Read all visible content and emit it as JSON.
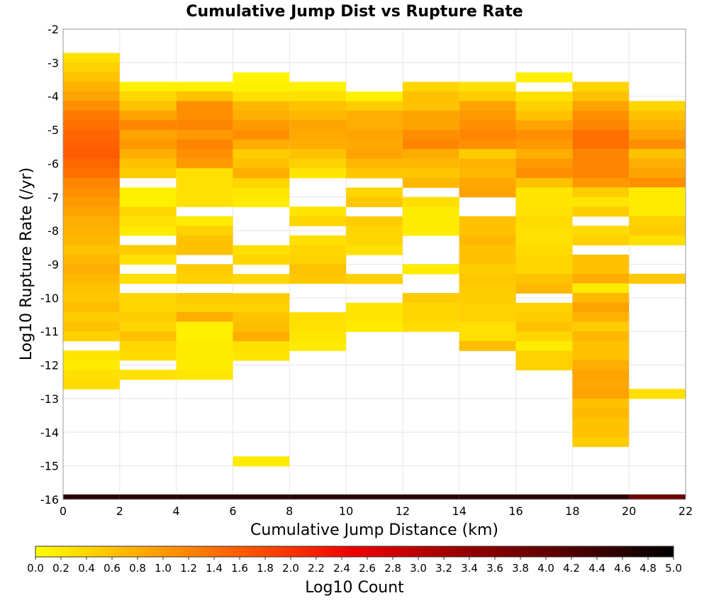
{
  "chart_data": {
    "type": "heatmap",
    "title": "Cumulative Jump Dist vs Rupture Rate",
    "xlabel": "Cumulative Jump Distance (km)",
    "ylabel": "Log10 Rupture Rate (/yr)",
    "xlim": [
      0,
      22
    ],
    "ylim": [
      -16,
      -2
    ],
    "x_ticks": [
      0,
      2,
      4,
      6,
      8,
      10,
      12,
      14,
      16,
      18,
      20,
      22
    ],
    "y_ticks": [
      -16,
      -15,
      -14,
      -13,
      -12,
      -11,
      -10,
      -9,
      -8,
      -7,
      -6,
      -5,
      -4,
      -3,
      -2
    ],
    "x_bin_width": 2,
    "y_bin_height": 0.2857,
    "grid": true,
    "colorbar": {
      "label": "Log10 Count",
      "range": [
        0,
        5
      ],
      "ticks": [
        "0.0",
        "0.2",
        "0.4",
        "0.6",
        "0.8",
        "1.0",
        "1.2",
        "1.4",
        "1.6",
        "1.8",
        "2.0",
        "2.2",
        "2.4",
        "2.6",
        "2.8",
        "3.0",
        "3.2",
        "3.4",
        "3.6",
        "3.8",
        "4.0",
        "4.2",
        "4.4",
        "4.6",
        "4.8",
        "5.0"
      ],
      "colors": [
        "#ffff00",
        "#ffaa00",
        "#ff5500",
        "#ee0000",
        "#990000",
        "#550000",
        "#000000"
      ]
    },
    "columns": [
      {
        "x_start": 0,
        "y_top": -2.71,
        "values": [
          0.3,
          0.45,
          0.6,
          0.75,
          0.9,
          1.1,
          1.3,
          1.4,
          1.5,
          1.55,
          1.6,
          1.5,
          1.4,
          1.2,
          1.1,
          1.0,
          0.9,
          0.8,
          0.75,
          0.7,
          0.6,
          0.7,
          0.8,
          0.7,
          0.6,
          0.55,
          0.65,
          0.5,
          0.6,
          0.45,
          null,
          0.25,
          0.2,
          0.3,
          0.35
        ]
      },
      {
        "x_start": 2,
        "y_top": -3.57,
        "values": [
          0.15,
          0.4,
          0.6,
          0.9,
          1.2,
          0.9,
          1.0,
          0.8,
          0.6,
          0.5,
          null,
          0.15,
          0.15,
          0.4,
          0.3,
          0.2,
          null,
          0.5,
          0.3,
          null,
          0.3,
          null,
          0.4,
          0.4,
          0.5,
          0.4,
          0.6,
          0.4,
          0.35,
          null,
          0.3
        ]
      },
      {
        "x_start": 4,
        "y_top": -3.57,
        "values": [
          0.15,
          0.6,
          1.1,
          1.1,
          1.2,
          1.0,
          1.2,
          1.1,
          1.0,
          0.3,
          0.3,
          0.3,
          0.3,
          null,
          0.2,
          0.45,
          0.6,
          0.6,
          null,
          0.5,
          0.45,
          null,
          0.5,
          0.45,
          0.8,
          0.15,
          0.15,
          0.2,
          0.2,
          0.2,
          0.25
        ]
      },
      {
        "x_start": 6,
        "y_top": -3.29,
        "values": [
          0.1,
          0.15,
          0.3,
          0.7,
          0.8,
          1.0,
          1.1,
          0.8,
          0.5,
          0.6,
          0.8,
          0.4,
          0.25,
          0.2,
          null,
          null,
          null,
          null,
          0.3,
          0.4,
          null,
          0.4,
          null,
          0.5,
          0.45,
          0.6,
          0.65,
          0.8,
          0.3,
          0.25,
          null,
          null,
          null,
          null,
          null,
          null,
          null,
          null,
          null,
          null,
          0.2
        ]
      },
      {
        "x_start": 8,
        "y_top": -3.57,
        "values": [
          0.15,
          0.3,
          0.6,
          0.7,
          0.9,
          0.85,
          0.8,
          0.6,
          0.45,
          0.25,
          null,
          null,
          null,
          0.25,
          0.4,
          null,
          0.3,
          0.4,
          0.45,
          0.6,
          0.55,
          null,
          null,
          null,
          0.3,
          0.3,
          0.25,
          0.2
        ]
      },
      {
        "x_start": 10,
        "y_top": -3.86,
        "values": [
          0.15,
          0.5,
          0.8,
          0.8,
          0.9,
          0.85,
          0.9,
          0.7,
          0.55,
          null,
          0.4,
          0.55,
          null,
          0.5,
          0.4,
          0.4,
          0.3,
          null,
          null,
          0.45,
          null,
          null,
          0.25,
          0.25,
          0.2
        ]
      },
      {
        "x_start": 12,
        "y_top": -3.57,
        "values": [
          0.4,
          0.6,
          0.6,
          0.9,
          0.9,
          1.1,
          1.2,
          0.8,
          0.7,
          0.55,
          0.7,
          null,
          0.3,
          0.2,
          0.2,
          0.2,
          null,
          null,
          null,
          0.2,
          null,
          null,
          0.5,
          0.4,
          0.4,
          0.35
        ]
      },
      {
        "x_start": 14,
        "y_top": -3.57,
        "values": [
          0.3,
          0.5,
          0.9,
          1.0,
          1.1,
          1.2,
          1.1,
          0.5,
          0.75,
          0.7,
          0.85,
          0.9,
          null,
          null,
          0.6,
          0.6,
          0.7,
          0.6,
          0.6,
          0.5,
          0.55,
          0.5,
          0.5,
          0.45,
          0.45,
          0.3,
          0.3,
          0.65
        ]
      },
      {
        "x_start": 16,
        "y_top": -3.29,
        "values": [
          0.15,
          null,
          0.3,
          0.45,
          0.6,
          0.9,
          1.1,
          1.0,
          0.8,
          1.0,
          1.1,
          0.6,
          0.25,
          0.25,
          0.3,
          0.35,
          0.3,
          0.3,
          0.35,
          0.4,
          0.4,
          0.6,
          0.7,
          null,
          0.45,
          0.5,
          0.6,
          0.4,
          0.2,
          0.45,
          0.45
        ]
      },
      {
        "x_start": 18,
        "y_top": -3.57,
        "values": [
          0.4,
          0.6,
          0.9,
          1.1,
          1.2,
          1.4,
          1.4,
          1.2,
          1.2,
          1.2,
          1.0,
          0.5,
          0.25,
          0.5,
          null,
          0.35,
          0.45,
          null,
          0.6,
          0.6,
          0.8,
          0.2,
          0.7,
          0.9,
          0.75,
          0.5,
          0.7,
          0.6,
          0.6,
          0.8,
          0.9,
          0.85,
          0.9,
          0.6,
          0.7,
          0.6,
          0.6,
          0.5
        ]
      },
      {
        "x_start": 20,
        "y_top": -4.14,
        "values": [
          0.4,
          0.6,
          0.75,
          0.9,
          1.1,
          0.6,
          0.8,
          0.9,
          1.1,
          0.2,
          0.2,
          0.2,
          0.45,
          0.5,
          0.3,
          null,
          null,
          null,
          0.55,
          null,
          null,
          null,
          null,
          null,
          null,
          null,
          null,
          null,
          null,
          null,
          0.3
        ]
      }
    ],
    "baseline_row": {
      "y": -16,
      "x_start": 0,
      "x_end": 22,
      "values": [
        4.6,
        4.6,
        4.6,
        4.6,
        4.6,
        4.6,
        4.6,
        4.6,
        4.6,
        4.6,
        3.9
      ]
    }
  }
}
